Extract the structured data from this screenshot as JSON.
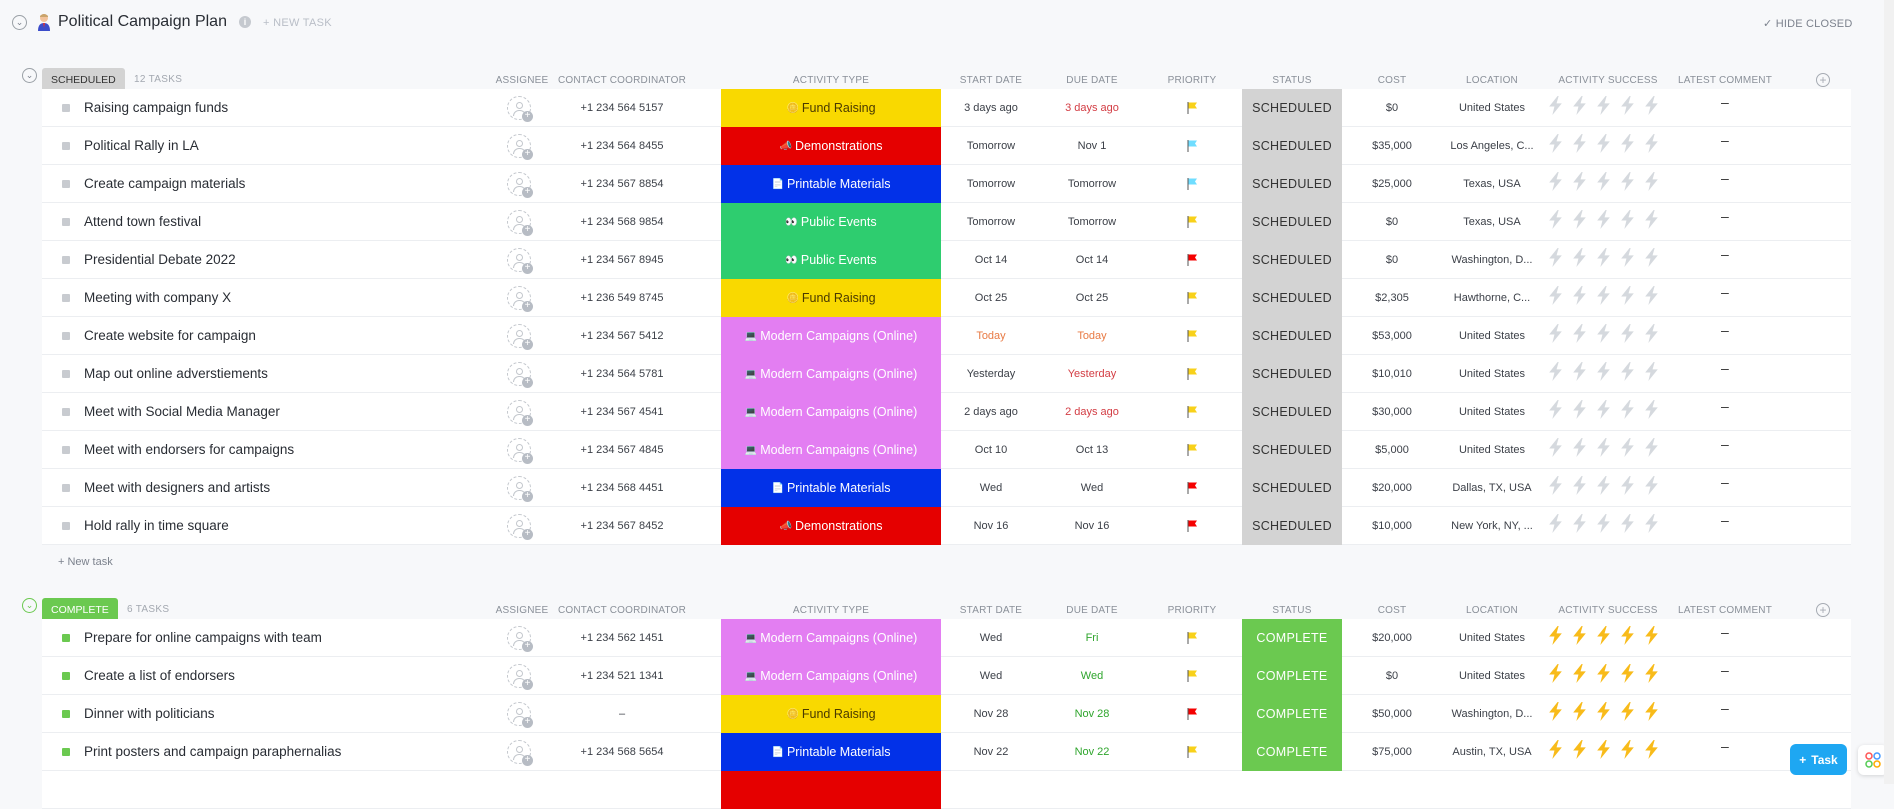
{
  "page": {
    "title": "Political Campaign Plan",
    "new_task_label": "+ NEW TASK",
    "hide_closed_label": "HIDE CLOSED",
    "fab_label": "Task"
  },
  "columns": [
    "ASSIGNEE",
    "CONTACT COORDINATOR",
    "ACTIVITY TYPE",
    "START DATE",
    "DUE DATE",
    "PRIORITY",
    "STATUS",
    "COST",
    "LOCATION",
    "ACTIVITY SUCCESS",
    "LATEST COMMENT"
  ],
  "colors": {
    "scheduled": "#d3d3d3",
    "complete": "#6bc950",
    "fund_raising": "#f9d900",
    "demonstrations": "#e50000",
    "printable": "#0231e8",
    "public_events": "#2ecd6f",
    "modern": "#e37ef2",
    "flag_yellow": "#f8d11a",
    "flag_cyan": "#6fddff",
    "flag_red": "#f50000",
    "red_date": "#d33d44",
    "orange_date": "#e87a44",
    "green_date": "#2ea52c",
    "bolt_on": "#f8bb1a",
    "bolt_off": "#d5d9de"
  },
  "groups": [
    {
      "status": "SCHEDULED",
      "count": "12 TASKS",
      "new_task": "+ New task",
      "rows": [
        {
          "name": "Raising campaign funds",
          "contact": "+1 234 564 5157",
          "activity": "Fund Raising",
          "activity_icon": "🪙",
          "start": "3 days ago",
          "due": "3 days ago",
          "due_color": "red_date",
          "priority": "flag_yellow",
          "status": "SCHEDULED",
          "cost": "$0",
          "location": "United States",
          "success": 0,
          "comment": "–"
        },
        {
          "name": "Political Rally in LA",
          "contact": "+1 234 564 8455",
          "activity": "Demonstrations",
          "activity_icon": "📣",
          "start": "Tomorrow",
          "due": "Nov 1",
          "priority": "flag_cyan",
          "status": "SCHEDULED",
          "cost": "$35,000",
          "location": "Los Angeles, C...",
          "success": 0,
          "comment": "–"
        },
        {
          "name": "Create campaign materials",
          "contact": "+1 234 567 8854",
          "activity": "Printable Materials",
          "activity_icon": "📄",
          "start": "Tomorrow",
          "due": "Tomorrow",
          "priority": "flag_cyan",
          "status": "SCHEDULED",
          "cost": "$25,000",
          "location": "Texas, USA",
          "success": 0,
          "comment": "–"
        },
        {
          "name": "Attend town festival",
          "contact": "+1 234 568 9854",
          "activity": "Public Events",
          "activity_icon": "👀",
          "start": "Tomorrow",
          "due": "Tomorrow",
          "priority": "flag_yellow",
          "status": "SCHEDULED",
          "cost": "$0",
          "location": "Texas, USA",
          "success": 0,
          "comment": "–"
        },
        {
          "name": "Presidential Debate 2022",
          "contact": "+1 234 567 8945",
          "activity": "Public Events",
          "activity_icon": "👀",
          "start": "Oct 14",
          "due": "Oct 14",
          "priority": "flag_red",
          "status": "SCHEDULED",
          "cost": "$0",
          "location": "Washington, D...",
          "success": 0,
          "comment": "–"
        },
        {
          "name": "Meeting with company X",
          "contact": "+1 236 549 8745",
          "activity": "Fund Raising",
          "activity_icon": "🪙",
          "start": "Oct 25",
          "due": "Oct 25",
          "priority": "flag_yellow",
          "status": "SCHEDULED",
          "cost": "$2,305",
          "location": "Hawthorne, C...",
          "success": 0,
          "comment": "–"
        },
        {
          "name": "Create website for campaign",
          "contact": "+1 234 567 5412",
          "activity": "Modern Campaigns (Online)",
          "activity_icon": "💻",
          "start": "Today",
          "start_color": "orange_date",
          "due": "Today",
          "due_color": "orange_date",
          "priority": "flag_yellow",
          "status": "SCHEDULED",
          "cost": "$53,000",
          "location": "United States",
          "success": 0,
          "comment": "–"
        },
        {
          "name": "Map out online adverstiements",
          "contact": "+1 234 564 5781",
          "activity": "Modern Campaigns (Online)",
          "activity_icon": "💻",
          "start": "Yesterday",
          "due": "Yesterday",
          "due_color": "red_date",
          "priority": "flag_yellow",
          "status": "SCHEDULED",
          "cost": "$10,010",
          "location": "United States",
          "success": 0,
          "comment": "–"
        },
        {
          "name": "Meet with Social Media Manager",
          "contact": "+1 234 567 4541",
          "activity": "Modern Campaigns (Online)",
          "activity_icon": "💻",
          "start": "2 days ago",
          "due": "2 days ago",
          "due_color": "red_date",
          "priority": "flag_yellow",
          "status": "SCHEDULED",
          "cost": "$30,000",
          "location": "United States",
          "success": 0,
          "comment": "–"
        },
        {
          "name": "Meet with endorsers for campaigns",
          "contact": "+1 234 567 4845",
          "activity": "Modern Campaigns (Online)",
          "activity_icon": "💻",
          "start": "Oct 10",
          "due": "Oct 13",
          "priority": "flag_yellow",
          "status": "SCHEDULED",
          "cost": "$5,000",
          "location": "United States",
          "success": 0,
          "comment": "–"
        },
        {
          "name": "Meet with designers and artists",
          "contact": "+1 234 568 4451",
          "activity": "Printable Materials",
          "activity_icon": "📄",
          "start": "Wed",
          "due": "Wed",
          "priority": "flag_red",
          "status": "SCHEDULED",
          "cost": "$20,000",
          "location": "Dallas, TX, USA",
          "success": 0,
          "comment": "–"
        },
        {
          "name": "Hold rally in time square",
          "contact": "+1 234 567 8452",
          "activity": "Demonstrations",
          "activity_icon": "📣",
          "start": "Nov 16",
          "due": "Nov 16",
          "priority": "flag_red",
          "status": "SCHEDULED",
          "cost": "$10,000",
          "location": "New York, NY, ...",
          "success": 0,
          "comment": "–"
        }
      ]
    },
    {
      "status": "COMPLETE",
      "count": "6 TASKS",
      "rows": [
        {
          "name": "Prepare for online campaigns with team",
          "contact": "+1 234 562 1451",
          "activity": "Modern Campaigns (Online)",
          "activity_icon": "💻",
          "start": "Wed",
          "due": "Fri",
          "due_color": "green_date",
          "priority": "flag_yellow",
          "status": "COMPLETE",
          "cost": "$20,000",
          "location": "United States",
          "success": 5,
          "comment": "–"
        },
        {
          "name": "Create a list of endorsers",
          "contact": "+1 234 521 1341",
          "activity": "Modern Campaigns (Online)",
          "activity_icon": "💻",
          "start": "Wed",
          "due": "Wed",
          "due_color": "green_date",
          "priority": "flag_yellow",
          "status": "COMPLETE",
          "cost": "$0",
          "location": "United States",
          "success": 5,
          "comment": "–"
        },
        {
          "name": "Dinner with politicians",
          "contact": "–",
          "activity": "Fund Raising",
          "activity_icon": "🪙",
          "start": "Nov 28",
          "due": "Nov 28",
          "due_color": "green_date",
          "priority": "flag_red",
          "status": "COMPLETE",
          "cost": "$50,000",
          "location": "Washington, D...",
          "success": 5,
          "comment": "–"
        },
        {
          "name": "Print posters and campaign paraphernalias",
          "contact": "+1 234 568 5654",
          "activity": "Printable Materials",
          "activity_icon": "📄",
          "start": "Nov 22",
          "due": "Nov 22",
          "due_color": "green_date",
          "priority": "flag_yellow",
          "status": "COMPLETE",
          "cost": "$75,000",
          "location": "Austin, TX, USA",
          "success": 5,
          "comment": "–"
        },
        {
          "name": "",
          "contact": "",
          "activity": "",
          "activity_icon": "",
          "start": "",
          "due": "",
          "priority": "",
          "status": "",
          "cost": "",
          "location": "",
          "success": -1,
          "comment": "",
          "partial_color": "demonstrations"
        }
      ]
    }
  ]
}
